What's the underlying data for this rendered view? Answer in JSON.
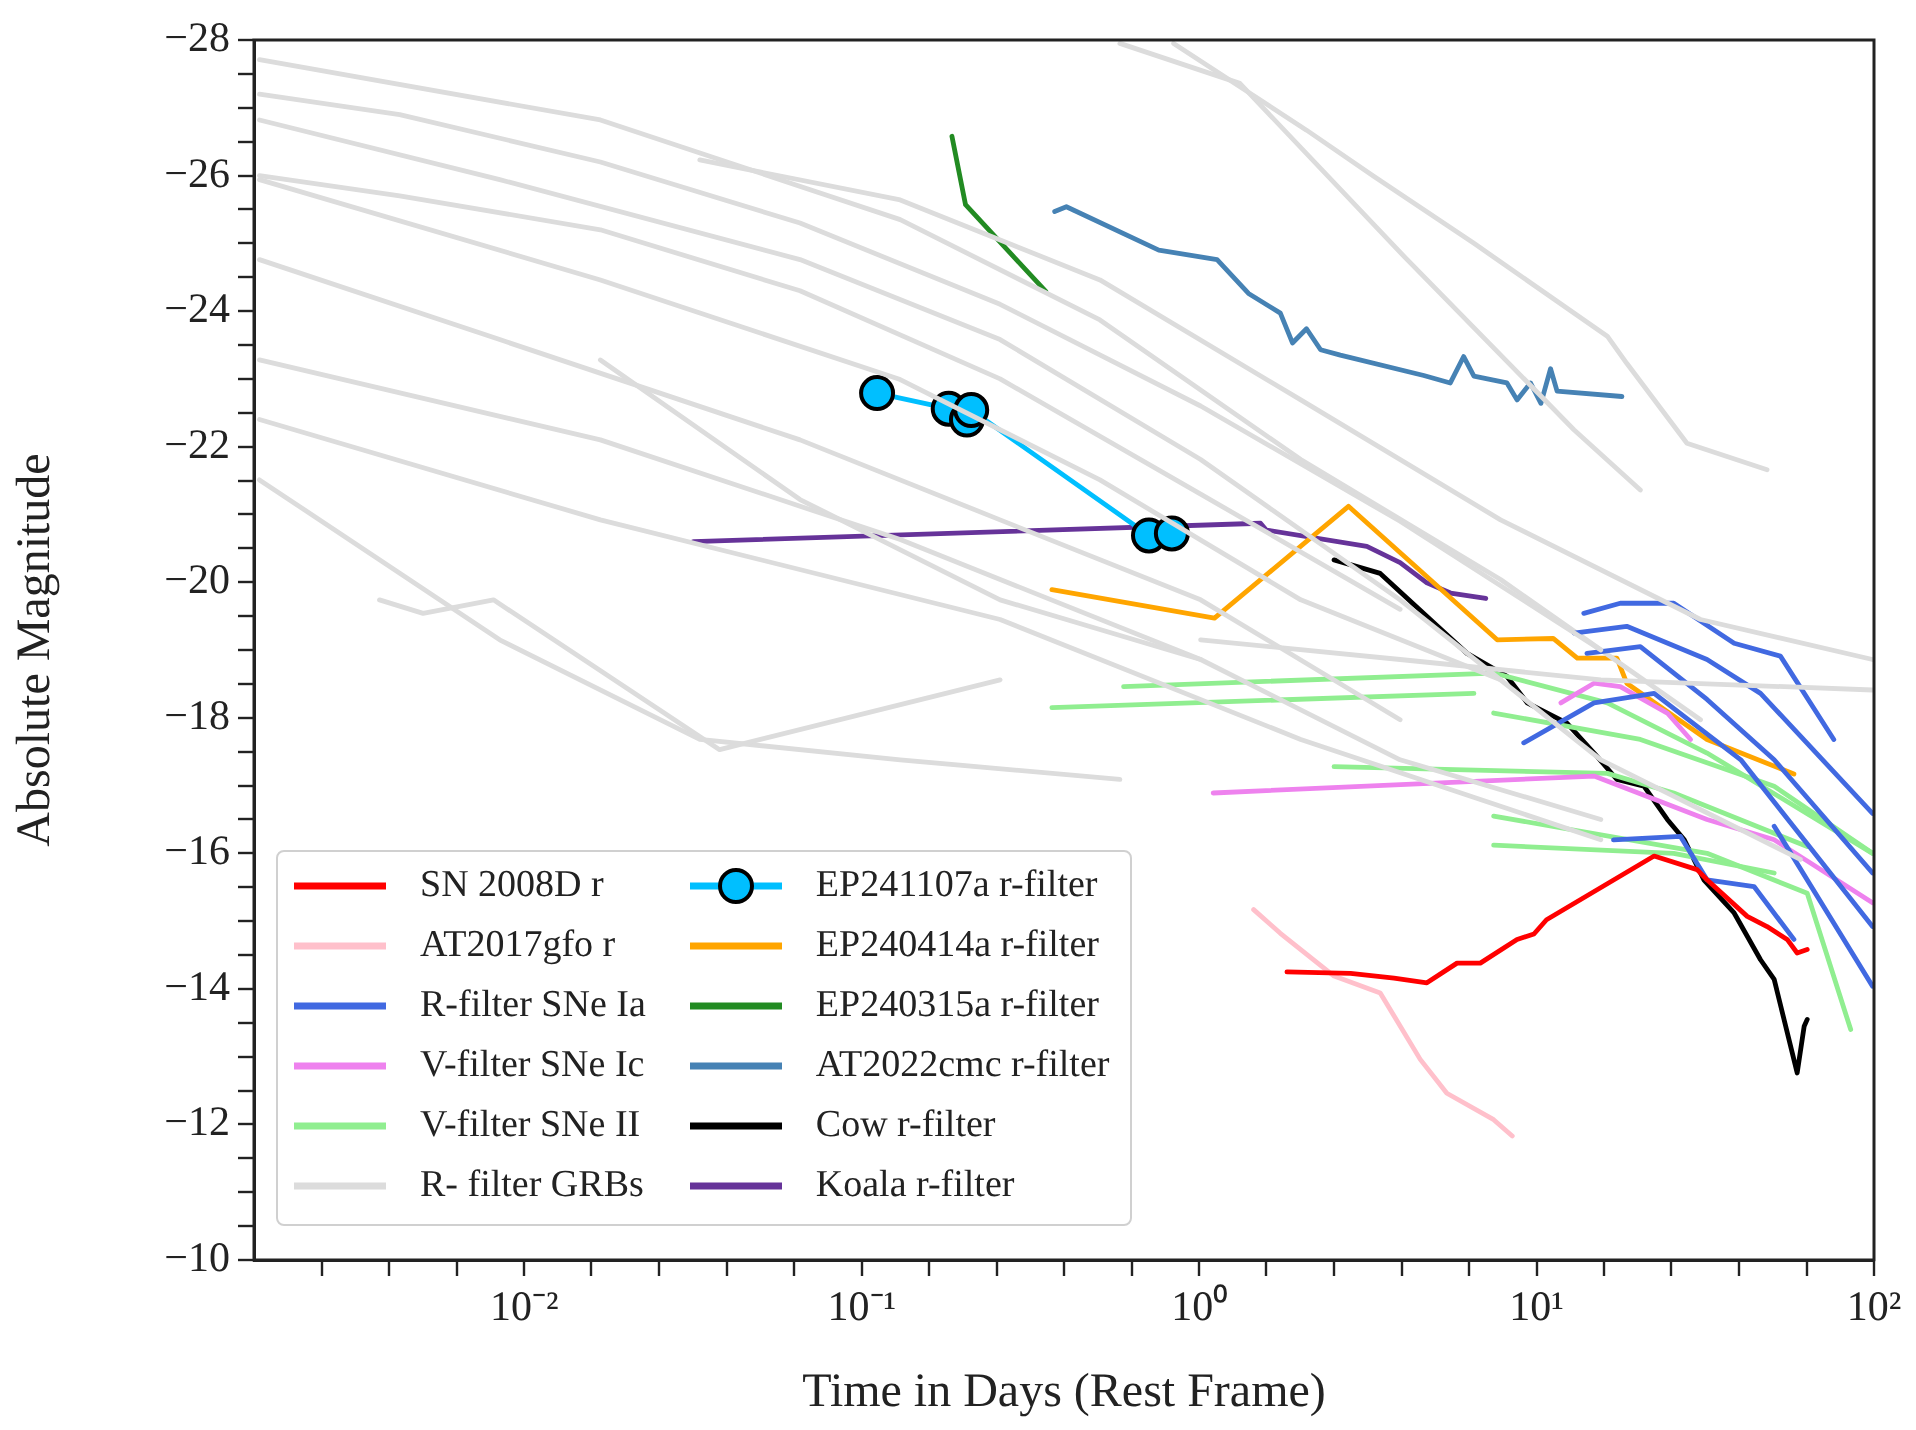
{
  "chart_data": {
    "type": "line",
    "xlabel": "Time in Days (Rest Frame)",
    "ylabel": "Absolute Magnitude",
    "log": "x",
    "grid": false,
    "legend": "bottom left",
    "xlim": [
      0.00158,
      100
    ],
    "ylim": [
      -10,
      -28
    ],
    "xticks": [
      {
        "value": 0.00251,
        "label": null
      },
      {
        "value": 0.00398,
        "label": null
      },
      {
        "value": 0.00631,
        "label": null
      },
      {
        "value": 0.01,
        "label": "10⁻²"
      },
      {
        "value": 0.0158,
        "label": null
      },
      {
        "value": 0.0251,
        "label": null
      },
      {
        "value": 0.0398,
        "label": null
      },
      {
        "value": 0.0631,
        "label": null
      },
      {
        "value": 0.1,
        "label": "10⁻¹"
      },
      {
        "value": 0.158,
        "label": null
      },
      {
        "value": 0.251,
        "label": null
      },
      {
        "value": 0.398,
        "label": null
      },
      {
        "value": 0.631,
        "label": null
      },
      {
        "value": 1,
        "label": "10⁰"
      },
      {
        "value": 1.58,
        "label": null
      },
      {
        "value": 2.51,
        "label": null
      },
      {
        "value": 3.98,
        "label": null
      },
      {
        "value": 6.31,
        "label": null
      },
      {
        "value": 10,
        "label": "10¹"
      },
      {
        "value": 15.8,
        "label": null
      },
      {
        "value": 25.1,
        "label": null
      },
      {
        "value": 39.8,
        "label": null
      },
      {
        "value": 63.1,
        "label": null
      },
      {
        "value": 100,
        "label": "10²"
      }
    ],
    "yticks": [
      -28,
      {
        "value": -27.5,
        "label": null
      },
      {
        "value": -27,
        "label": null
      },
      {
        "value": -26.5,
        "label": null
      },
      -26,
      {
        "value": -25.5,
        "label": null
      },
      {
        "value": -25,
        "label": null
      },
      {
        "value": -24.5,
        "label": null
      },
      -24,
      {
        "value": -23.5,
        "label": null
      },
      {
        "value": -23,
        "label": null
      },
      {
        "value": -22.5,
        "label": null
      },
      -22,
      {
        "value": -21.5,
        "label": null
      },
      {
        "value": -21,
        "label": null
      },
      {
        "value": -20.5,
        "label": null
      },
      -20,
      {
        "value": -19.5,
        "label": null
      },
      {
        "value": -19,
        "label": null
      },
      {
        "value": -18.5,
        "label": null
      },
      -18,
      {
        "value": -17.5,
        "label": null
      },
      {
        "value": -17,
        "label": null
      },
      {
        "value": -16.5,
        "label": null
      },
      -16,
      {
        "value": -15.5,
        "label": null
      },
      {
        "value": -15,
        "label": null
      },
      {
        "value": -14.5,
        "label": null
      },
      -14,
      {
        "value": -13.5,
        "label": null
      },
      {
        "value": -13,
        "label": null
      },
      {
        "value": -12.5,
        "label": null
      },
      -12,
      {
        "value": -11.5,
        "label": null
      },
      {
        "value": -11,
        "label": null
      },
      {
        "value": -10.5,
        "label": null
      },
      -10
    ],
    "series": [
      {
        "color": "#dcdcdc",
        "x": [
          0.00164,
          0.00845,
          0.0656,
          0.257,
          1.01,
          3.94,
          15.5,
          60.5
        ],
        "values": [
          -26.82,
          -25.94,
          -24.76,
          -23.58,
          -21.81,
          -19.74,
          -17.38,
          -15.91
        ]
      },
      {
        "color": "#dcdcdc",
        "x": [
          0.00164,
          0.0168,
          0.13,
          0.508,
          2.0,
          7.82
        ],
        "values": [
          -25.94,
          -24.46,
          -22.99,
          -21.51,
          -19.74,
          -18.56
        ]
      },
      {
        "color": "#dcdcdc",
        "x": [
          0.00164,
          0.00845,
          0.0656,
          0.257,
          1.01,
          3.94
        ],
        "values": [
          -24.76,
          -23.58,
          -22.1,
          -20.92,
          -19.74,
          -17.97
        ]
      },
      {
        "color": "#dcdcdc",
        "x": [
          0.00164,
          0.0168,
          0.13,
          1.01
        ],
        "values": [
          -23.28,
          -22.1,
          -20.63,
          -18.86
        ]
      },
      {
        "color": "#dcdcdc",
        "x": [
          0.00164,
          0.0168,
          0.257,
          2.0,
          15.5
        ],
        "values": [
          -22.4,
          -20.92,
          -19.45,
          -17.68,
          -16.2
        ]
      },
      {
        "color": "#dcdcdc",
        "x": [
          0.84,
          2.08,
          3.29,
          6.52,
          16.2,
          18.5,
          27.9,
          48.2
        ],
        "values": [
          -27.95,
          -26.67,
          -25.99,
          -25.0,
          -23.63,
          -23.23,
          -22.05,
          -21.66
        ]
      },
      {
        "color": "#dcdcdc",
        "x": [
          0.582,
          1.32,
          4.06,
          12.9,
          20.3
        ],
        "values": [
          -27.95,
          -27.36,
          -24.8,
          -22.25,
          -21.36
        ]
      },
      {
        "color": "#dcdcdc",
        "x": [
          0.00372,
          0.00501,
          0.0081,
          0.0379,
          0.257
        ],
        "values": [
          -19.74,
          -19.54,
          -19.74,
          -17.53,
          -18.56
        ]
      },
      {
        "color": "#dcdcdc",
        "x": [
          0.00164,
          0.00845,
          0.0331,
          0.13,
          0.582
        ],
        "values": [
          -21.51,
          -19.15,
          -17.68,
          -17.38,
          -17.09
        ]
      },
      {
        "color": "#dcdcdc",
        "x": [
          0.0168,
          0.0656,
          0.257,
          1.01,
          3.94,
          15.5
        ],
        "values": [
          -23.28,
          -21.22,
          -19.74,
          -18.86,
          -17.38,
          -16.5
        ]
      },
      {
        "color": "#dcdcdc",
        "x": [
          1.01,
          3.94,
          15.5,
          99
        ],
        "values": [
          -19.15,
          -18.86,
          -18.56,
          -18.41
        ]
      },
      {
        "color": "#dcdcdc",
        "x": [
          0.0331,
          0.13,
          0.508,
          2.0,
          7.82,
          30.6,
          99
        ],
        "values": [
          -26.23,
          -25.64,
          -24.46,
          -22.69,
          -20.92,
          -19.45,
          -18.86
        ]
      },
      {
        "color": "#dcdcdc",
        "x": [
          0.00164,
          0.00427,
          0.0168,
          0.0656,
          0.257,
          1.01,
          3.94,
          15.5
        ],
        "values": [
          -27.2,
          -26.9,
          -26.2,
          -25.3,
          -24.1,
          -22.6,
          -20.9,
          -19.0
        ]
      },
      {
        "color": "#dcdcdc",
        "x": [
          0.00164,
          0.00427,
          0.0168,
          0.0656,
          0.257,
          1.01,
          3.94
        ],
        "values": [
          -26.0,
          -25.7,
          -25.2,
          -24.3,
          -23.0,
          -21.3,
          -19.6
        ]
      },
      {
        "name": "SN 2008D r",
        "color": "#ff0000",
        "x": [
          1.82,
          2.81,
          3.78,
          4.73,
          5.81,
          6.81,
          8.75,
          9.82,
          10.7,
          22.3,
          29.9,
          32.0,
          42.1,
          48.2,
          55.3,
          59.2,
          63.4
        ],
        "values": [
          -14.25,
          -14.23,
          -14.16,
          -14.09,
          -14.38,
          -14.38,
          -14.73,
          -14.81,
          -15.02,
          -15.96,
          -15.76,
          -15.61,
          -15.07,
          -14.92,
          -14.73,
          -14.53,
          -14.58
        ]
      },
      {
        "name": "AT2017gfo r",
        "color": "#ffc0cb",
        "x": [
          1.45,
          1.74,
          2.51,
          3.44,
          4.52,
          5.42,
          7.46,
          8.47
        ],
        "values": [
          -15.17,
          -14.82,
          -14.19,
          -13.94,
          -12.96,
          -12.46,
          -12.07,
          -11.83
        ]
      },
      {
        "name": "R-filter SNe Ia",
        "color": "#4169e1",
        "x": [
          13.8,
          17.7,
          25.5,
          38.5,
          52.8,
          76.0
        ],
        "values": [
          -19.54,
          -19.69,
          -19.69,
          -19.1,
          -18.91,
          -17.68
        ]
      },
      {
        "color": "#4169e1",
        "x": [
          12.9,
          18.5,
          32.0,
          46.1,
          99
        ],
        "values": [
          -19.25,
          -19.35,
          -18.86,
          -18.36,
          -16.59
        ]
      },
      {
        "color": "#4169e1",
        "x": [
          14.1,
          20.3,
          32.0,
          50.6,
          99
        ],
        "values": [
          -18.95,
          -19.05,
          -18.27,
          -17.38,
          -15.71
        ]
      },
      {
        "color": "#4169e1",
        "x": [
          9.16,
          14.8,
          22.3,
          40.3,
          99
        ],
        "values": [
          -17.63,
          -18.22,
          -18.36,
          -17.38,
          -14.92
        ]
      },
      {
        "color": "#4169e1",
        "x": [
          16.9,
          26.7,
          32.0,
          44.1,
          57.9
        ],
        "values": [
          -16.2,
          -16.25,
          -15.61,
          -15.51,
          -14.73
        ]
      },
      {
        "color": "#4169e1",
        "x": [
          50.6,
          99
        ],
        "values": [
          -16.4,
          -14.04
        ]
      },
      {
        "name": "V-filter SNe Ic",
        "color": "#ee82ee",
        "x": [
          1.1,
          5.19,
          14.8,
          32.0,
          50.6,
          99
        ],
        "values": [
          -16.89,
          -17.04,
          -17.14,
          -16.5,
          -16.2,
          -15.27
        ]
      },
      {
        "color": "#ee82ee",
        "x": [
          11.8,
          14.8,
          17.7,
          24.4,
          28.6
        ],
        "values": [
          -18.22,
          -18.51,
          -18.46,
          -18.07,
          -17.68
        ]
      },
      {
        "name": "V-filter SNe II",
        "color": "#90ee90",
        "x": [
          0.597,
          7.46,
          16.2,
          32.0,
          99
        ],
        "values": [
          -18.46,
          -18.66,
          -18.22,
          -17.48,
          -16.0
        ]
      },
      {
        "color": "#90ee90",
        "x": [
          0.366,
          6.52
        ],
        "values": [
          -18.15,
          -18.36
        ]
      },
      {
        "color": "#90ee90",
        "x": [
          2.51,
          16.2,
          25.5,
          63.4
        ],
        "values": [
          -17.28,
          -17.18,
          -16.89,
          -16.1
        ]
      },
      {
        "color": "#90ee90",
        "x": [
          7.46,
          20.3,
          50.6,
          99
        ],
        "values": [
          -18.07,
          -17.68,
          -16.99,
          -16.0
        ]
      },
      {
        "color": "#90ee90",
        "x": [
          7.46,
          32.0,
          63.4,
          85.3
        ],
        "values": [
          -16.55,
          -16.0,
          -15.41,
          -13.4
        ]
      },
      {
        "color": "#90ee90",
        "x": [
          7.46,
          25.5,
          50.6
        ],
        "values": [
          -16.12,
          -16.0,
          -15.71
        ]
      },
      {
        "name": "R- filter GRBs",
        "color": "#dcdcdc",
        "x": [
          0.00164,
          0.0168,
          0.13,
          0.508,
          2.0,
          7.82,
          30.6
        ],
        "values": [
          -27.71,
          -26.82,
          -25.35,
          -23.87,
          -21.81,
          -20.04,
          -17.97
        ]
      },
      {
        "name": "EP241107a r-filter",
        "color": "#00bfff",
        "marker": "circle",
        "x": [
          0.111,
          0.181,
          0.205,
          0.211,
          0.71,
          0.83
        ],
        "values": [
          -22.79,
          -22.56,
          -22.4,
          -22.54,
          -20.69,
          -20.72
        ]
      },
      {
        "name": "EP240414a r-filter",
        "color": "#ffa500",
        "x": [
          0.366,
          1.11,
          2.77,
          7.64,
          11.2,
          13.2,
          17.3,
          18.5,
          32.0,
          57.9
        ],
        "values": [
          -19.89,
          -19.47,
          -21.12,
          -19.15,
          -19.17,
          -18.88,
          -18.88,
          -18.51,
          -17.68,
          -17.17
        ]
      },
      {
        "name": "EP240315a r-filter",
        "color": "#228b22",
        "x": [
          0.185,
          0.203,
          0.351
        ],
        "values": [
          -26.58,
          -25.57,
          -24.29
        ]
      },
      {
        "name": "AT2022cmc r-filter",
        "color": "#4682b4",
        "x": [
          0.373,
          0.404,
          0.759,
          1.13,
          1.4,
          1.74,
          1.89,
          2.08,
          2.29,
          2.62,
          4.63,
          5.55,
          6.08,
          6.52,
          8.17,
          8.75,
          9.59,
          10.3,
          11.0,
          11.5,
          17.9
        ],
        "values": [
          -25.47,
          -25.54,
          -24.9,
          -24.76,
          -24.26,
          -23.97,
          -23.53,
          -23.74,
          -23.43,
          -23.35,
          -23.05,
          -22.94,
          -23.33,
          -23.04,
          -22.94,
          -22.69,
          -22.94,
          -22.64,
          -23.15,
          -22.82,
          -22.74
        ]
      },
      {
        "name": "Cow r-filter",
        "color": "#000000",
        "x": [
          2.51,
          3.44,
          6.22,
          8.17,
          9.38,
          12.3,
          14.8,
          17.3,
          20.8,
          24.4,
          27.4,
          31.3,
          38.5,
          46.1,
          50.6,
          59.2,
          62.1,
          63.4
        ],
        "values": [
          -20.33,
          -20.13,
          -18.95,
          -18.61,
          -18.22,
          -17.92,
          -17.48,
          -17.09,
          -16.99,
          -16.5,
          -16.2,
          -15.61,
          -15.12,
          -14.43,
          -14.14,
          -12.76,
          -13.45,
          -13.55
        ]
      },
      {
        "name": "Koala r-filter",
        "color": "#663399",
        "x": [
          0.0317,
          1.52,
          1.58,
          3.14,
          3.94,
          4.73,
          5.56,
          7.07
        ],
        "values": [
          -20.6,
          -20.87,
          -20.77,
          -20.53,
          -20.29,
          -19.99,
          -19.84,
          -19.76
        ]
      }
    ]
  }
}
